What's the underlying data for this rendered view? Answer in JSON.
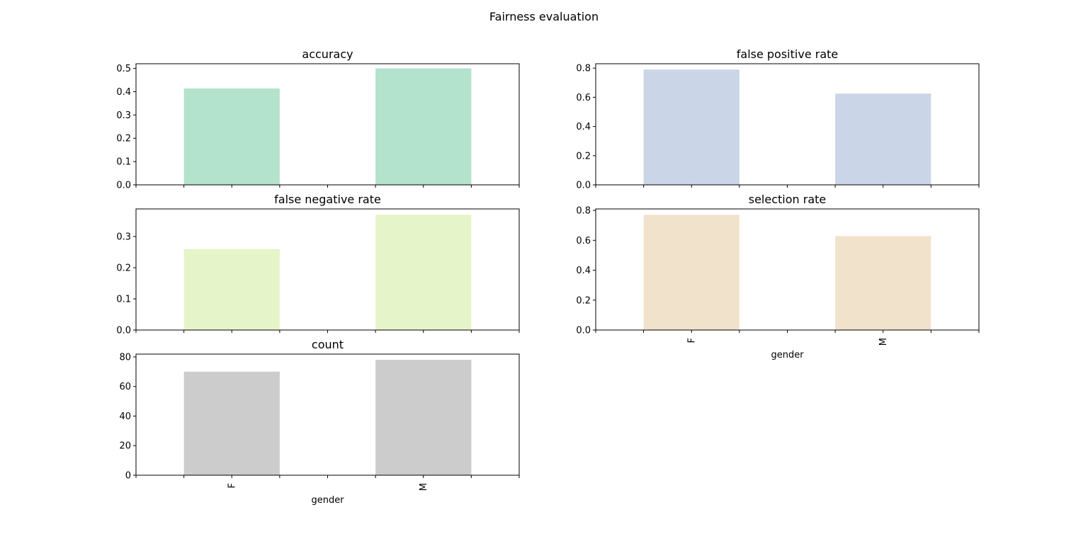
{
  "figure": {
    "title": "Fairness evaluation"
  },
  "chart_data": [
    {
      "type": "bar",
      "title": "accuracy",
      "categories": [
        "F",
        "M"
      ],
      "values": [
        0.414,
        0.5
      ],
      "ylim": [
        0,
        0.52
      ],
      "yticks": [
        "0.0",
        "0.1",
        "0.2",
        "0.3",
        "0.4",
        "0.5"
      ],
      "color": "#b3e2cd",
      "xlabel": "",
      "show_xticklabels": false
    },
    {
      "type": "bar",
      "title": "false positive rate",
      "categories": [
        "F",
        "M"
      ],
      "values": [
        0.79,
        0.625
      ],
      "ylim": [
        0,
        0.83
      ],
      "yticks": [
        "0.0",
        "0.2",
        "0.4",
        "0.6",
        "0.8"
      ],
      "color": "#cbd5e8",
      "xlabel": "",
      "show_xticklabels": false
    },
    {
      "type": "bar",
      "title": "false negative rate",
      "categories": [
        "F",
        "M"
      ],
      "values": [
        0.26,
        0.37
      ],
      "ylim": [
        0,
        0.3885
      ],
      "yticks": [
        "0.0",
        "0.1",
        "0.2",
        "0.3"
      ],
      "color": "#e6f5c9",
      "xlabel": "",
      "show_xticklabels": false
    },
    {
      "type": "bar",
      "title": "selection rate",
      "categories": [
        "F",
        "M"
      ],
      "values": [
        0.771,
        0.628
      ],
      "ylim": [
        0,
        0.81
      ],
      "yticks": [
        "0.0",
        "0.2",
        "0.4",
        "0.6",
        "0.8"
      ],
      "color": "#f1e2cc",
      "xlabel": "gender",
      "show_xticklabels": true
    },
    {
      "type": "bar",
      "title": "count",
      "categories": [
        "F",
        "M"
      ],
      "values": [
        70,
        78
      ],
      "ylim": [
        0,
        81.9
      ],
      "yticks": [
        "0",
        "20",
        "40",
        "60",
        "80"
      ],
      "color": "#cccccc",
      "xlabel": "gender",
      "show_xticklabels": true
    }
  ]
}
